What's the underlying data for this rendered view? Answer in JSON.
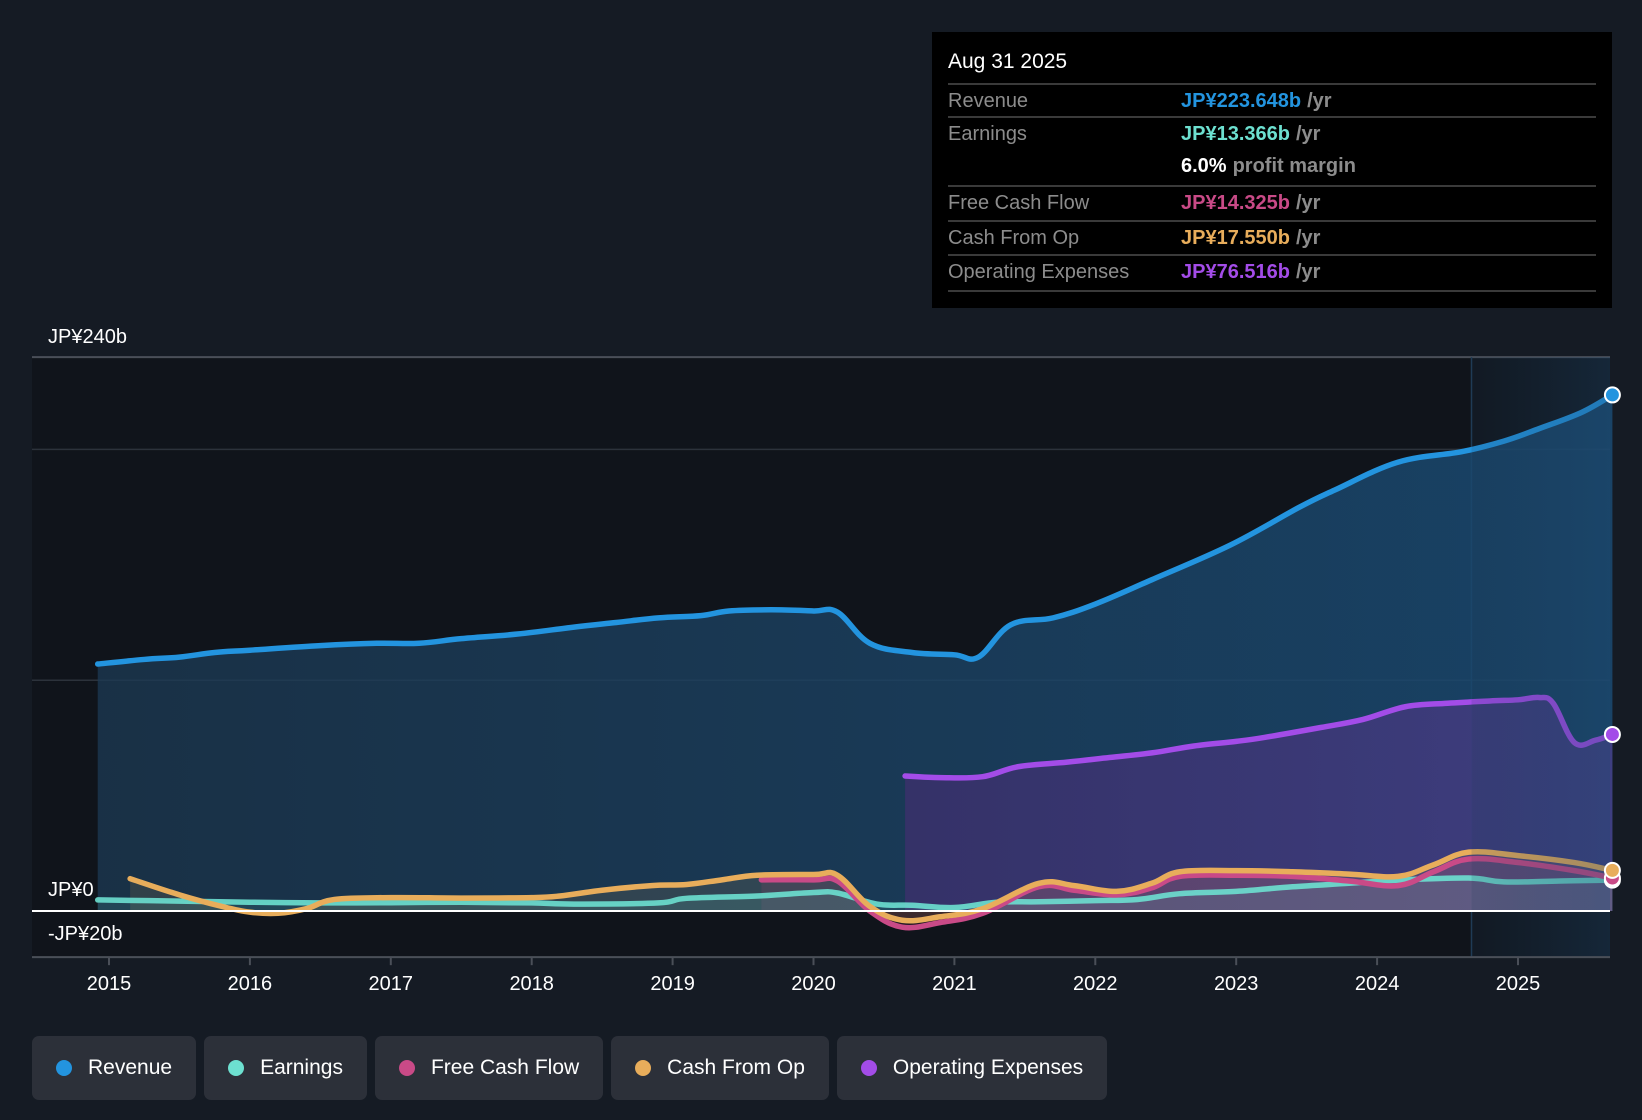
{
  "tooltip": {
    "date": "Aug 31 2025",
    "rows": [
      {
        "label": "Revenue",
        "value": "JP¥223.648b",
        "unit": "/yr",
        "color": "#2394df"
      },
      {
        "label": "Earnings",
        "value": "JP¥13.366b",
        "unit": "/yr",
        "color": "#6de0d0"
      },
      {
        "label": "",
        "value": "6.0%",
        "unit": "profit margin",
        "color": "#ffffff"
      },
      {
        "label": "Free Cash Flow",
        "value": "JP¥14.325b",
        "unit": "/yr",
        "color": "#c94a87"
      },
      {
        "label": "Cash From Op",
        "value": "JP¥17.550b",
        "unit": "/yr",
        "color": "#e8ad5b"
      },
      {
        "label": "Operating Expenses",
        "value": "JP¥76.516b",
        "unit": "/yr",
        "color": "#a34ce8"
      }
    ]
  },
  "legend": [
    {
      "label": "Revenue",
      "color": "#2394df"
    },
    {
      "label": "Earnings",
      "color": "#6de0d0"
    },
    {
      "label": "Free Cash Flow",
      "color": "#c94a87"
    },
    {
      "label": "Cash From Op",
      "color": "#e8ad5b"
    },
    {
      "label": "Operating Expenses",
      "color": "#a34ce8"
    }
  ],
  "chart_data": {
    "type": "area",
    "title": "",
    "xlabel": "",
    "ylabel": "",
    "y_tick_labels": [
      "JP¥240b",
      "JP¥0",
      "-JP¥20b"
    ],
    "y_ticks": [
      240,
      0,
      -20
    ],
    "gridlines_at": [
      240,
      200,
      100,
      0
    ],
    "ylim": [
      -20,
      240
    ],
    "xlim": [
      2014.58,
      2025.67
    ],
    "x_tick_labels": [
      "2015",
      "2016",
      "2017",
      "2018",
      "2019",
      "2020",
      "2021",
      "2022",
      "2023",
      "2024",
      "2025"
    ],
    "x_ticks": [
      2015,
      2016,
      2017,
      2018,
      2019,
      2020,
      2021,
      2022,
      2023,
      2024,
      2025
    ],
    "highlight_region_start": 2024.67,
    "grid": true,
    "legend_position": "bottom-left",
    "series": [
      {
        "name": "Revenue",
        "color": "#2394df",
        "fill": true,
        "end_marker": true,
        "x": [
          2014.92,
          2015.25,
          2015.5,
          2015.75,
          2016.0,
          2016.5,
          2016.9,
          2017.2,
          2017.5,
          2017.9,
          2018.3,
          2018.6,
          2018.9,
          2019.2,
          2019.4,
          2019.7,
          2020.0,
          2020.17,
          2020.4,
          2020.7,
          2021.0,
          2021.17,
          2021.4,
          2021.7,
          2022.0,
          2022.4,
          2022.96,
          2023.45,
          2023.7,
          2024.15,
          2024.6,
          2024.9,
          2025.15,
          2025.45,
          2025.67
        ],
        "values": [
          107,
          109,
          110,
          112,
          113,
          115,
          116,
          116,
          118,
          120,
          123,
          125,
          127,
          128,
          130,
          130.5,
          130,
          129.5,
          116,
          112,
          111,
          110,
          124,
          127,
          133,
          143.5,
          158.6,
          175,
          182.4,
          194.5,
          199,
          203.6,
          209,
          216,
          223.6
        ]
      },
      {
        "name": "Operating Expenses",
        "color": "#a34ce8",
        "fill": true,
        "end_marker": true,
        "x": [
          2020.65,
          2020.9,
          2021.2,
          2021.45,
          2021.8,
          2022.1,
          2022.4,
          2022.7,
          2023.0,
          2023.2,
          2023.6,
          2023.9,
          2024.2,
          2024.5,
          2024.8,
          2025.0,
          2025.15,
          2025.25,
          2025.4,
          2025.55,
          2025.67
        ],
        "values": [
          58.5,
          57.8,
          58.2,
          62.5,
          64.5,
          66.5,
          68.5,
          71.5,
          73.5,
          75.2,
          79.5,
          83,
          88.5,
          90,
          91,
          91.5,
          92.5,
          90,
          73,
          74,
          76.5
        ]
      },
      {
        "name": "Cash From Op",
        "color": "#e8ad5b",
        "fill": false,
        "end_marker": true,
        "x": [
          2015.15,
          2015.5,
          2015.8,
          2016.0,
          2016.2,
          2016.4,
          2016.6,
          2017.0,
          2017.5,
          2018.0,
          2018.2,
          2018.5,
          2018.85,
          2019.1,
          2019.35,
          2019.6,
          2020.0,
          2020.17,
          2020.4,
          2020.63,
          2020.9,
          2021.2,
          2021.6,
          2021.85,
          2022.15,
          2022.4,
          2022.6,
          2023.0,
          2023.4,
          2023.8,
          2024.15,
          2024.4,
          2024.65,
          2025.0,
          2025.4,
          2025.67
        ],
        "values": [
          14,
          7,
          2,
          -0.5,
          -1,
          1,
          5,
          5.8,
          5.6,
          5.8,
          6.5,
          9,
          11,
          11.5,
          13.5,
          15.5,
          15.8,
          15.5,
          2,
          -4,
          -2.5,
          1,
          12,
          11,
          8.5,
          12,
          17,
          17.5,
          17,
          16,
          15,
          20,
          25.5,
          24,
          21,
          17.6
        ]
      },
      {
        "name": "Free Cash Flow",
        "color": "#c94a87",
        "fill": false,
        "end_marker": true,
        "x": [
          2019.63,
          2020.0,
          2020.17,
          2020.4,
          2020.63,
          2020.9,
          2021.2,
          2021.6,
          2021.85,
          2022.15,
          2022.4,
          2022.6,
          2023.0,
          2023.4,
          2023.8,
          2024.15,
          2024.4,
          2024.65,
          2025.0,
          2025.4,
          2025.67
        ],
        "values": [
          13.5,
          13.5,
          13,
          0,
          -7,
          -5,
          -1,
          10.5,
          9,
          7,
          10,
          15,
          15.5,
          15,
          13,
          11,
          17,
          22.5,
          21,
          17.5,
          14.3
        ]
      },
      {
        "name": "Earnings",
        "color": "#6de0d0",
        "fill": false,
        "end_marker": true,
        "x": [
          2014.92,
          2015.5,
          2016.0,
          2016.5,
          2017.0,
          2017.5,
          2018.0,
          2018.3,
          2018.9,
          2019.1,
          2019.6,
          2020.0,
          2020.17,
          2020.45,
          2020.7,
          2021.0,
          2021.3,
          2021.6,
          2022.0,
          2022.3,
          2022.6,
          2023.0,
          2023.4,
          2023.8,
          2024.15,
          2024.65,
          2024.9,
          2025.3,
          2025.67
        ],
        "values": [
          4.8,
          4.3,
          3.8,
          3.5,
          3.6,
          3.8,
          3.5,
          3,
          3.5,
          5.5,
          6.5,
          8,
          7.8,
          3,
          2.5,
          1.5,
          3.8,
          4,
          4.5,
          5,
          7.5,
          8.5,
          10.5,
          12,
          13.4,
          14.3,
          12.6,
          13,
          13.4
        ]
      }
    ]
  }
}
